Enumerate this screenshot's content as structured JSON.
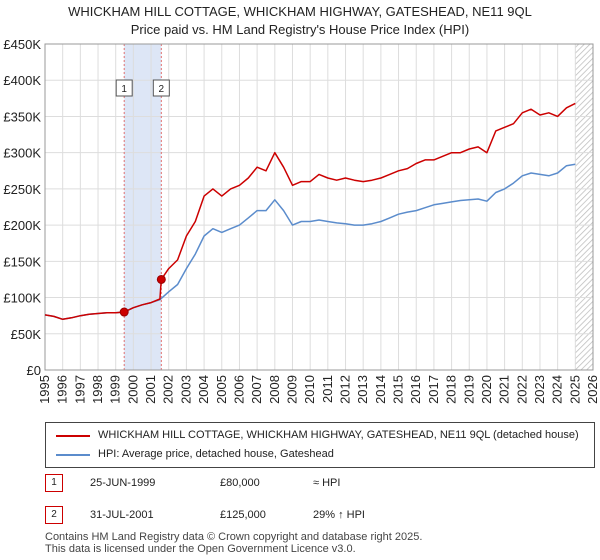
{
  "chart_data": {
    "type": "line",
    "title_line1": "WHICKHAM HILL COTTAGE, WHICKHAM HIGHWAY, GATESHEAD, NE11 9QL",
    "title_line2": "Price paid vs. HM Land Registry's House Price Index (HPI)",
    "xlabel": "",
    "ylabel": "",
    "xlim": [
      1995,
      2026
    ],
    "ylim": [
      0,
      450000
    ],
    "x_ticks": [
      1995,
      1996,
      1997,
      1998,
      1999,
      2000,
      2001,
      2002,
      2003,
      2004,
      2005,
      2006,
      2007,
      2008,
      2009,
      2010,
      2011,
      2012,
      2013,
      2014,
      2015,
      2016,
      2017,
      2018,
      2019,
      2020,
      2021,
      2022,
      2023,
      2024,
      2025,
      2026
    ],
    "y_ticks": [
      {
        "value": 0,
        "label": "£0"
      },
      {
        "value": 50000,
        "label": "£50K"
      },
      {
        "value": 100000,
        "label": "£100K"
      },
      {
        "value": 150000,
        "label": "£150K"
      },
      {
        "value": 200000,
        "label": "£200K"
      },
      {
        "value": 250000,
        "label": "£250K"
      },
      {
        "value": 300000,
        "label": "£300K"
      },
      {
        "value": 350000,
        "label": "£350K"
      },
      {
        "value": 400000,
        "label": "£400K"
      },
      {
        "value": 450000,
        "label": "£450K"
      }
    ],
    "grid": true,
    "shaded_span": [
      1999.48,
      2001.58
    ],
    "future_hatch_from": 2025.0,
    "series": [
      {
        "name": "WHICKHAM HILL COTTAGE, WHICKHAM HIGHWAY, GATESHEAD, NE11 9QL (detached house)",
        "color": "#cc0000",
        "x": [
          1995,
          1995.5,
          1996,
          1996.5,
          1997,
          1997.5,
          1998,
          1998.5,
          1999,
          1999.48,
          2000,
          2000.5,
          2001,
          2001.5,
          2001.58,
          2002,
          2002.5,
          2003,
          2003.5,
          2004,
          2004.5,
          2005,
          2005.5,
          2006,
          2006.5,
          2007,
          2007.5,
          2008,
          2008.5,
          2009,
          2009.5,
          2010,
          2010.5,
          2011,
          2011.5,
          2012,
          2012.5,
          2013,
          2013.5,
          2014,
          2014.5,
          2015,
          2015.5,
          2016,
          2016.5,
          2017,
          2017.5,
          2018,
          2018.5,
          2019,
          2019.5,
          2020,
          2020.5,
          2021,
          2021.5,
          2022,
          2022.5,
          2023,
          2023.5,
          2024,
          2024.5,
          2025
        ],
        "y": [
          76000,
          74000,
          70000,
          72000,
          75000,
          77000,
          78000,
          79000,
          79000,
          80000,
          86000,
          90000,
          93000,
          98000,
          125000,
          140000,
          152000,
          185000,
          205000,
          240000,
          250000,
          240000,
          250000,
          255000,
          265000,
          280000,
          275000,
          300000,
          280000,
          255000,
          260000,
          260000,
          270000,
          265000,
          262000,
          265000,
          262000,
          260000,
          262000,
          265000,
          270000,
          275000,
          278000,
          285000,
          290000,
          290000,
          295000,
          300000,
          300000,
          305000,
          308000,
          300000,
          330000,
          335000,
          340000,
          355000,
          360000,
          352000,
          355000,
          350000,
          362000,
          368000
        ]
      },
      {
        "name": "HPI: Average price, detached house, Gateshead",
        "color": "#5b8ccc",
        "x": [
          1995,
          1995.5,
          1996,
          1996.5,
          1997,
          1997.5,
          1998,
          1998.5,
          1999,
          1999.48,
          2000,
          2000.5,
          2001,
          2001.5,
          2002,
          2002.5,
          2003,
          2003.5,
          2004,
          2004.5,
          2005,
          2005.5,
          2006,
          2006.5,
          2007,
          2007.5,
          2008,
          2008.5,
          2009,
          2009.5,
          2010,
          2010.5,
          2011,
          2011.5,
          2012,
          2012.5,
          2013,
          2013.5,
          2014,
          2014.5,
          2015,
          2015.5,
          2016,
          2016.5,
          2017,
          2017.5,
          2018,
          2018.5,
          2019,
          2019.5,
          2020,
          2020.5,
          2021,
          2021.5,
          2022,
          2022.5,
          2023,
          2023.5,
          2024,
          2024.5,
          2025
        ],
        "y": [
          76000,
          74000,
          70000,
          72000,
          75000,
          77000,
          78000,
          79000,
          79000,
          80000,
          86000,
          90000,
          93000,
          97000,
          108000,
          118000,
          140000,
          160000,
          185000,
          195000,
          190000,
          195000,
          200000,
          210000,
          220000,
          220000,
          235000,
          220000,
          200000,
          205000,
          205000,
          207000,
          205000,
          203000,
          202000,
          200000,
          200000,
          202000,
          205000,
          210000,
          215000,
          218000,
          220000,
          224000,
          228000,
          230000,
          232000,
          234000,
          235000,
          236000,
          233000,
          245000,
          250000,
          258000,
          268000,
          272000,
          270000,
          268000,
          272000,
          282000,
          284000
        ]
      }
    ],
    "markers": [
      {
        "label": "1",
        "x": 1999.48,
        "y": 80000
      },
      {
        "label": "2",
        "x": 2001.58,
        "y": 125000
      }
    ]
  },
  "legend": {
    "items": [
      {
        "label": "WHICKHAM HILL COTTAGE, WHICKHAM HIGHWAY, GATESHEAD, NE11 9QL (detached house)",
        "color": "#cc0000"
      },
      {
        "label": "HPI: Average price, detached house, Gateshead",
        "color": "#5b8ccc"
      }
    ]
  },
  "sales": [
    {
      "badge": "1",
      "date": "25-JUN-1999",
      "price": "£80,000",
      "hpi": "≈ HPI"
    },
    {
      "badge": "2",
      "date": "31-JUL-2001",
      "price": "£125,000",
      "hpi": "29% ↑ HPI"
    }
  ],
  "footer": {
    "line1": "Contains HM Land Registry data © Crown copyright and database right 2025.",
    "line2": "This data is licensed under the Open Government Licence v3.0."
  }
}
